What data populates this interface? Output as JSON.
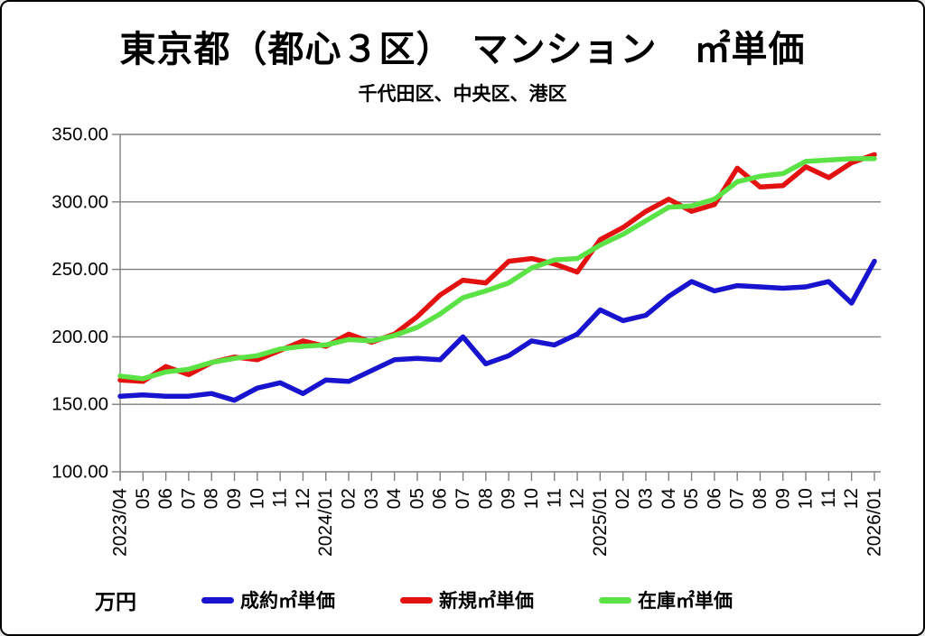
{
  "title": "東京都（都心３区）　マンション　㎡単価",
  "subtitle": "千代田区、中央区、港区",
  "unit_label": "万円",
  "colors": {
    "contract_blue": "#1713CE",
    "new_red": "#E41111",
    "stock_green": "#5BE245",
    "grid": "#7F7F7F",
    "text": "#000000",
    "background": "#FFFFFF"
  },
  "legend": [
    {
      "label": "成約㎡単価",
      "color": "#1713CE"
    },
    {
      "label": "新規㎡単価",
      "color": "#E41111"
    },
    {
      "label": "在庫㎡単価",
      "color": "#5BE245"
    }
  ],
  "chart_data": {
    "type": "line",
    "title": "東京都（都心３区）　マンション　㎡単価",
    "subtitle": "千代田区、中央区、港区",
    "ylabel_unit": "万円",
    "grid": true,
    "legend_position": "bottom",
    "ylim": [
      100,
      350
    ],
    "ytick_step": 50,
    "ytick_labels": [
      "100.00",
      "150.00",
      "200.00",
      "250.00",
      "300.00",
      "350.00"
    ],
    "x": [
      "2023/04",
      "05",
      "06",
      "07",
      "08",
      "09",
      "10",
      "11",
      "12",
      "2024/01",
      "02",
      "03",
      "04",
      "05",
      "06",
      "07",
      "08",
      "09",
      "10",
      "11",
      "12",
      "2025/01",
      "02",
      "03",
      "04",
      "05",
      "06",
      "07",
      "08",
      "09",
      "10",
      "11",
      "12",
      "2026/01"
    ],
    "series": [
      {
        "name": "成約㎡単価",
        "color": "#1713CE",
        "values": [
          156,
          157,
          156,
          156,
          158,
          153,
          162,
          166,
          158,
          168,
          167,
          175,
          183,
          184,
          183,
          200,
          180,
          186,
          197,
          194,
          202,
          220,
          212,
          216,
          230,
          241,
          234,
          238,
          237,
          236,
          237,
          241,
          225,
          256
        ]
      },
      {
        "name": "新規㎡単価",
        "color": "#E41111",
        "values": [
          168,
          167,
          178,
          172,
          181,
          185,
          183,
          190,
          197,
          193,
          202,
          196,
          202,
          215,
          231,
          242,
          240,
          256,
          258,
          254,
          248,
          272,
          281,
          293,
          302,
          293,
          298,
          325,
          311,
          312,
          326,
          318,
          329,
          335
        ]
      },
      {
        "name": "在庫㎡単価",
        "color": "#5BE245",
        "values": [
          171,
          169,
          174,
          176,
          181,
          184,
          186,
          191,
          193,
          194,
          198,
          197,
          201,
          207,
          217,
          229,
          234,
          240,
          251,
          257,
          258,
          268,
          276,
          286,
          296,
          297,
          302,
          315,
          319,
          321,
          330,
          331,
          332,
          332
        ]
      }
    ]
  }
}
